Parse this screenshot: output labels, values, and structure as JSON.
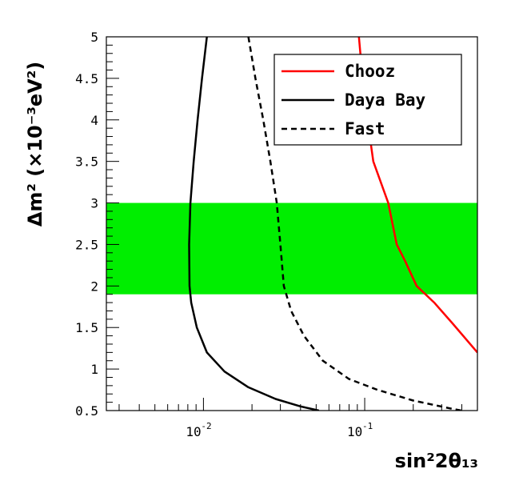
{
  "chart_data": {
    "type": "line",
    "xlabel": "sin²2θ₁₃",
    "ylabel": "Δm² (×10⁻³eV²)",
    "x_scale": "log",
    "xlim": [
      0.0025,
      0.5
    ],
    "ylim": [
      0.5,
      5
    ],
    "x_ticks": [
      {
        "value": 0.01,
        "base": "10",
        "exp": "-2"
      },
      {
        "value": 0.1,
        "base": "10",
        "exp": "-1"
      }
    ],
    "y_ticks": [
      "0.5",
      "1",
      "1.5",
      "2",
      "2.5",
      "3",
      "3.5",
      "4",
      "4.5",
      "5"
    ],
    "band": {
      "y_low": 1.9,
      "y_high": 3.0,
      "color": "#00ee00"
    },
    "series": [
      {
        "name": "Chooz",
        "color": "#ff0000",
        "dash": "solid",
        "points": [
          [
            0.092,
            5.0
          ],
          [
            0.097,
            4.5
          ],
          [
            0.104,
            4.0
          ],
          [
            0.113,
            3.5
          ],
          [
            0.14,
            3.0
          ],
          [
            0.158,
            2.5
          ],
          [
            0.178,
            2.3
          ],
          [
            0.21,
            2.0
          ],
          [
            0.27,
            1.8
          ],
          [
            0.35,
            1.55
          ],
          [
            0.5,
            1.2
          ]
        ]
      },
      {
        "name": "Daya Bay",
        "color": "#000000",
        "dash": "solid",
        "points": [
          [
            0.0105,
            5.0
          ],
          [
            0.0098,
            4.5
          ],
          [
            0.0092,
            4.0
          ],
          [
            0.0087,
            3.5
          ],
          [
            0.0083,
            3.0
          ],
          [
            0.00815,
            2.5
          ],
          [
            0.0082,
            2.0
          ],
          [
            0.0084,
            1.8
          ],
          [
            0.0091,
            1.5
          ],
          [
            0.0105,
            1.2
          ],
          [
            0.0135,
            0.97
          ],
          [
            0.019,
            0.78
          ],
          [
            0.028,
            0.64
          ],
          [
            0.04,
            0.55
          ],
          [
            0.052,
            0.5
          ]
        ]
      },
      {
        "name": "Fast",
        "color": "#000000",
        "dash": "dashed",
        "points": [
          [
            0.019,
            5.0
          ],
          [
            0.021,
            4.5
          ],
          [
            0.0235,
            4.0
          ],
          [
            0.026,
            3.5
          ],
          [
            0.0285,
            3.0
          ],
          [
            0.03,
            2.5
          ],
          [
            0.0315,
            2.0
          ],
          [
            0.035,
            1.7
          ],
          [
            0.042,
            1.4
          ],
          [
            0.055,
            1.1
          ],
          [
            0.08,
            0.88
          ],
          [
            0.12,
            0.75
          ],
          [
            0.2,
            0.62
          ],
          [
            0.35,
            0.52
          ],
          [
            0.4,
            0.5
          ]
        ]
      }
    ],
    "legend": {
      "placement": "top-right",
      "entries": [
        "Chooz",
        "Daya Bay",
        "Fast"
      ]
    }
  }
}
